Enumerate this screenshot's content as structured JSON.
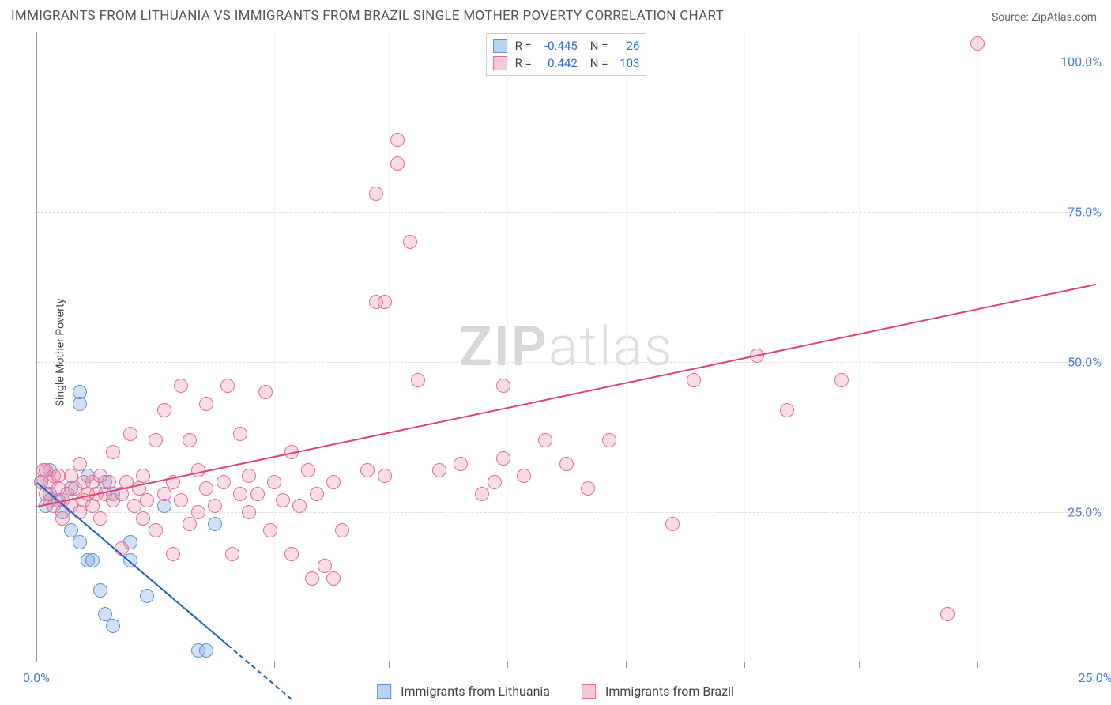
{
  "title": "IMMIGRANTS FROM LITHUANIA VS IMMIGRANTS FROM BRAZIL SINGLE MOTHER POVERTY CORRELATION CHART",
  "source_label": "Source: ",
  "source_name": "ZipAtlas.com",
  "ylabel": "Single Mother Poverty",
  "watermark_a": "ZIP",
  "watermark_b": "atlas",
  "chart": {
    "type": "scatter",
    "background_color": "#ffffff",
    "grid_color": "#e0e0e0",
    "axis_color": "#999999",
    "label_color": "#4a7fd8",
    "xlim": [
      0,
      25
    ],
    "ylim": [
      0,
      105
    ],
    "xticks": [
      0,
      2.8,
      5.6,
      8.3,
      11.1,
      13.9,
      16.7,
      19.4,
      22.2,
      25
    ],
    "xtick_labels": {
      "0": "0.0%",
      "25": "25.0%"
    },
    "yticks": [
      25,
      50,
      75,
      100
    ],
    "ytick_labels": {
      "25": "25.0%",
      "50": "50.0%",
      "75": "75.0%",
      "100": "100.0%"
    },
    "marker_radius": 9,
    "marker_stroke_width": 1.5,
    "series": [
      {
        "name": "Immigrants from Lithuania",
        "fill": "rgba(120,170,230,0.35)",
        "stroke": "#5a93d6",
        "swatch_fill": "#b9d3f0",
        "swatch_stroke": "#5a93d6",
        "R": "-0.445",
        "N": "26",
        "trend": {
          "color": "#1f5fc4",
          "x1": 0,
          "y1": 30,
          "x2": 4.5,
          "y2": 3,
          "dash_to_x": 6.0,
          "dash_to_y": -6
        },
        "points": [
          [
            0.1,
            30
          ],
          [
            0.2,
            26
          ],
          [
            0.3,
            32
          ],
          [
            0.3,
            28
          ],
          [
            0.5,
            27
          ],
          [
            1.0,
            45
          ],
          [
            1.0,
            43
          ],
          [
            0.6,
            25
          ],
          [
            0.8,
            29
          ],
          [
            1.2,
            31
          ],
          [
            0.8,
            22
          ],
          [
            1.0,
            20
          ],
          [
            1.2,
            17
          ],
          [
            1.3,
            17
          ],
          [
            1.6,
            30
          ],
          [
            1.5,
            12
          ],
          [
            1.8,
            28
          ],
          [
            2.2,
            20
          ],
          [
            2.2,
            17
          ],
          [
            1.6,
            8
          ],
          [
            1.8,
            6
          ],
          [
            2.6,
            11
          ],
          [
            3.0,
            26
          ],
          [
            3.8,
            2
          ],
          [
            4.0,
            2
          ],
          [
            4.2,
            23
          ]
        ]
      },
      {
        "name": "Immigrants from Brazil",
        "fill": "rgba(240,140,165,0.30)",
        "stroke": "#e36f92",
        "swatch_fill": "#f7c9d6",
        "swatch_stroke": "#e36f92",
        "R": "0.442",
        "N": "103",
        "trend": {
          "color": "#e0446f",
          "x1": 0,
          "y1": 26,
          "x2": 25,
          "y2": 63
        },
        "points": [
          [
            0.1,
            30
          ],
          [
            0.15,
            32
          ],
          [
            0.2,
            32
          ],
          [
            0.2,
            28
          ],
          [
            0.3,
            30
          ],
          [
            0.3,
            27
          ],
          [
            0.4,
            31
          ],
          [
            0.4,
            26
          ],
          [
            0.5,
            29
          ],
          [
            0.5,
            31
          ],
          [
            0.6,
            27
          ],
          [
            0.6,
            24
          ],
          [
            0.7,
            28
          ],
          [
            0.8,
            31
          ],
          [
            0.8,
            26
          ],
          [
            0.9,
            29
          ],
          [
            1.0,
            33
          ],
          [
            1.0,
            25
          ],
          [
            1.1,
            30
          ],
          [
            1.1,
            27
          ],
          [
            1.2,
            28
          ],
          [
            1.3,
            26
          ],
          [
            1.3,
            30
          ],
          [
            1.4,
            28
          ],
          [
            1.5,
            31
          ],
          [
            1.5,
            24
          ],
          [
            1.6,
            28
          ],
          [
            1.7,
            30
          ],
          [
            1.8,
            27
          ],
          [
            1.8,
            35
          ],
          [
            2.0,
            28
          ],
          [
            2.0,
            19
          ],
          [
            2.1,
            30
          ],
          [
            2.2,
            38
          ],
          [
            2.3,
            26
          ],
          [
            2.4,
            29
          ],
          [
            2.5,
            31
          ],
          [
            2.5,
            24
          ],
          [
            2.6,
            27
          ],
          [
            2.8,
            37
          ],
          [
            2.8,
            22
          ],
          [
            3.0,
            42
          ],
          [
            3.0,
            28
          ],
          [
            3.2,
            30
          ],
          [
            3.2,
            18
          ],
          [
            3.4,
            27
          ],
          [
            3.4,
            46
          ],
          [
            3.6,
            23
          ],
          [
            3.6,
            37
          ],
          [
            3.8,
            25
          ],
          [
            3.8,
            32
          ],
          [
            4.0,
            29
          ],
          [
            4.0,
            43
          ],
          [
            4.2,
            26
          ],
          [
            4.4,
            30
          ],
          [
            4.5,
            46
          ],
          [
            4.6,
            18
          ],
          [
            4.8,
            28
          ],
          [
            4.8,
            38
          ],
          [
            5.0,
            25
          ],
          [
            5.0,
            31
          ],
          [
            5.2,
            28
          ],
          [
            5.4,
            45
          ],
          [
            5.5,
            22
          ],
          [
            5.6,
            30
          ],
          [
            5.8,
            27
          ],
          [
            6.0,
            35
          ],
          [
            6.0,
            18
          ],
          [
            6.2,
            26
          ],
          [
            6.4,
            32
          ],
          [
            6.5,
            14
          ],
          [
            6.6,
            28
          ],
          [
            6.8,
            16
          ],
          [
            7.0,
            30
          ],
          [
            7.0,
            14
          ],
          [
            7.2,
            22
          ],
          [
            7.8,
            32
          ],
          [
            8.0,
            60
          ],
          [
            8.0,
            78
          ],
          [
            8.2,
            31
          ],
          [
            8.2,
            60
          ],
          [
            8.5,
            83
          ],
          [
            8.5,
            87
          ],
          [
            8.8,
            70
          ],
          [
            9.0,
            47
          ],
          [
            9.5,
            32
          ],
          [
            10.0,
            33
          ],
          [
            10.5,
            28
          ],
          [
            10.8,
            30
          ],
          [
            11.0,
            34
          ],
          [
            11.0,
            46
          ],
          [
            11.5,
            31
          ],
          [
            12.0,
            37
          ],
          [
            12.5,
            33
          ],
          [
            13.0,
            29
          ],
          [
            13.5,
            37
          ],
          [
            15.0,
            23
          ],
          [
            15.5,
            47
          ],
          [
            17.0,
            51
          ],
          [
            17.7,
            42
          ],
          [
            19.0,
            47
          ],
          [
            21.5,
            8
          ],
          [
            22.2,
            103
          ]
        ]
      }
    ],
    "bottom_legend": [
      {
        "label": "Immigrants from Lithuania",
        "fill": "#b9d3f0",
        "stroke": "#5a93d6"
      },
      {
        "label": "Immigrants from Brazil",
        "fill": "#f7c9d6",
        "stroke": "#e36f92"
      }
    ]
  }
}
